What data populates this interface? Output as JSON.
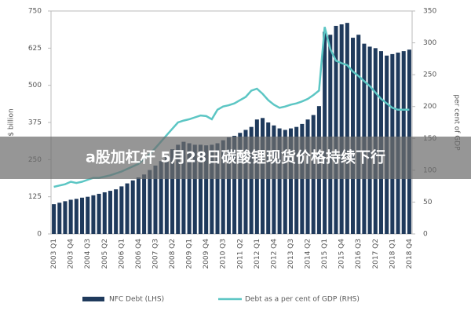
{
  "chart_data": {
    "type": "bar-line",
    "y_label": "$ billion",
    "y2_label": "per cent of GDP",
    "categories": [
      "2003 Q1",
      null,
      null,
      "2003 Q4",
      null,
      null,
      "2004 Q3",
      null,
      null,
      "2005 Q2",
      null,
      null,
      "2006 Q1",
      null,
      null,
      "2006 Q4",
      null,
      null,
      "2007 Q3",
      null,
      null,
      "2008 Q2",
      null,
      null,
      "2009 Q1",
      null,
      null,
      "2009 Q4",
      null,
      null,
      "2010 Q3",
      null,
      null,
      "2011 Q2",
      null,
      null,
      "2012 Q1",
      null,
      null,
      "2012 Q4",
      null,
      null,
      "2013 Q3",
      null,
      null,
      "2014 Q2",
      null,
      null,
      "2015 Q1",
      null,
      null,
      "2015 Q4",
      null,
      null,
      "2016 Q3",
      null,
      null,
      "2017 Q2",
      null,
      null,
      "2018 Q1",
      null,
      null,
      "2018 Q4"
    ],
    "series": [
      {
        "name": "NFC Debt (LHS)",
        "color": "#1f3a5c",
        "type": "bar",
        "axis": "y",
        "values": [
          100,
          105,
          110,
          115,
          118,
          122,
          125,
          130,
          135,
          140,
          145,
          150,
          160,
          170,
          180,
          190,
          200,
          215,
          230,
          245,
          265,
          285,
          300,
          310,
          305,
          300,
          300,
          298,
          300,
          305,
          315,
          325,
          330,
          340,
          350,
          360,
          385,
          390,
          375,
          365,
          355,
          350,
          355,
          360,
          370,
          385,
          400,
          430,
          680,
          670,
          700,
          705,
          710,
          660,
          670,
          640,
          630,
          625,
          615,
          600,
          605,
          610,
          615,
          620
        ]
      },
      {
        "name": "Debt as a per cent of GDP (RHS)",
        "color": "#5cc6c4",
        "type": "line",
        "axis": "y2",
        "values": [
          74,
          76,
          78,
          82,
          80,
          82,
          85,
          88,
          88,
          90,
          92,
          95,
          98,
          102,
          106,
          110,
          118,
          125,
          135,
          145,
          155,
          165,
          175,
          178,
          180,
          183,
          186,
          185,
          180,
          195,
          200,
          202,
          205,
          210,
          215,
          225,
          228,
          220,
          210,
          203,
          198,
          200,
          203,
          205,
          208,
          212,
          218,
          225,
          325,
          290,
          272,
          268,
          265,
          255,
          248,
          240,
          232,
          222,
          212,
          205,
          198,
          195,
          195,
          195
        ]
      }
    ],
    "ylim": [
      0,
      750
    ],
    "yticks": [
      0,
      125,
      250,
      375,
      500,
      625,
      750
    ],
    "y2lim": [
      0,
      350
    ],
    "y2ticks": [
      0,
      50,
      100,
      150,
      200,
      250,
      300,
      350
    ],
    "grid": false
  },
  "banner": {
    "text": "a股加杠杆 5月28日碳酸锂现货价格持续下行"
  }
}
